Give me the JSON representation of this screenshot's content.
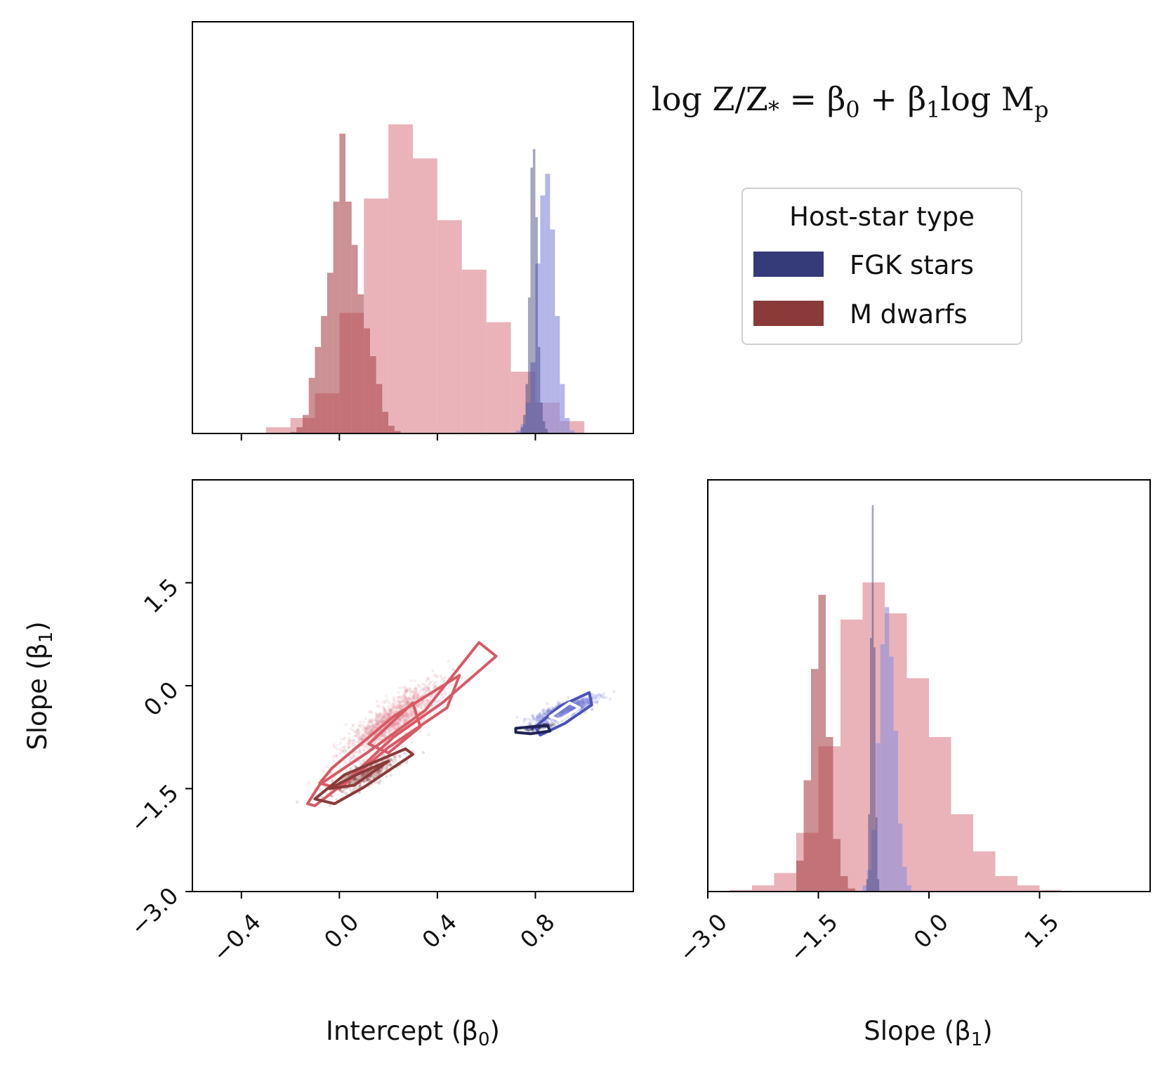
{
  "chart_data": {
    "type": "corner",
    "annotation": "log Z/Z* = β0 + β1 log Mp",
    "annotation_parts": {
      "lhs": "log Z/Z",
      "lhs_sub": "*",
      "eq": " = β",
      "b0_sub": "0",
      "plus": " + β",
      "b1_sub": "1",
      "log": "log M",
      "mp_sub": "p"
    },
    "legend": {
      "title": "Host-star type",
      "placement": "upper-right",
      "entries": [
        {
          "label": "FGK stars",
          "color": "#353a78"
        },
        {
          "label": "M dwarfs",
          "color": "#8b3a3a"
        }
      ]
    },
    "colors": {
      "fgk_dark": "#353a78",
      "fgk_light": "#8c8fdc",
      "m_dark": "#a8484d",
      "m_light": "#df8a95"
    },
    "panels": [
      {
        "name": "intercept-histogram",
        "type": "histogram",
        "xlim": [
          -0.6,
          1.2
        ],
        "xticks": [
          -0.4,
          0.0,
          0.4,
          0.8
        ],
        "show_tick_labels": false,
        "series": [
          {
            "name": "M dwarfs (light)",
            "color": "#df8a95",
            "opacity": 0.65,
            "bin_start": -0.3,
            "bin_width": 0.1,
            "counts": [
              0.02,
              0.05,
              0.13,
              0.39,
              0.76,
              1.0,
              0.89,
              0.69,
              0.53,
              0.36,
              0.2,
              0.1,
              0.04
            ]
          },
          {
            "name": "M dwarfs (dark)",
            "color": "#a8484d",
            "opacity": 0.6,
            "bin_start": -0.2,
            "bin_width": 0.025,
            "counts": [
              0.005,
              0.02,
              0.06,
              0.18,
              0.28,
              0.38,
              0.52,
              0.75,
              0.97,
              0.75,
              0.61,
              0.45,
              0.34,
              0.25,
              0.16,
              0.07,
              0.025,
              0.008
            ]
          },
          {
            "name": "FGK stars (light)",
            "color": "#8c8fdc",
            "opacity": 0.65,
            "bin_start": 0.72,
            "bin_width": 0.02,
            "counts": [
              0.01,
              0.03,
              0.1,
              0.23,
              0.55,
              0.77,
              0.84,
              0.66,
              0.38,
              0.16,
              0.05,
              0.01
            ]
          },
          {
            "name": "FGK stars (dark)",
            "color": "#353a78",
            "opacity": 0.45,
            "bin_start": 0.74,
            "bin_width": 0.01,
            "counts": [
              0.02,
              0.06,
              0.16,
              0.44,
              0.86,
              0.92,
              0.7,
              0.28,
              0.1,
              0.04,
              0.015
            ]
          }
        ]
      },
      {
        "name": "joint-scatter",
        "type": "scatter-contour",
        "xlim": [
          -0.6,
          1.2
        ],
        "ylim": [
          -3.0,
          3.0
        ],
        "xlabel": "Intercept (β0)",
        "xlabel_parts": {
          "text": "Intercept (β",
          "sub": "0",
          "close": ")"
        },
        "ylabel": "Slope (β1)",
        "ylabel_parts": {
          "text": "Slope (β",
          "sub": "1",
          "close": ")"
        },
        "xticks": [
          -0.4,
          0.0,
          0.4,
          0.8
        ],
        "xtick_labels": [
          "−0.4",
          "0.0",
          "0.4",
          "0.8"
        ],
        "yticks": [
          -3.0,
          -1.5,
          0.0,
          1.5
        ],
        "ytick_labels": [
          "−3.0",
          "−1.5",
          "0.0",
          "1.5"
        ],
        "clouds": [
          {
            "name": "M dwarfs (light)",
            "color": "#df8a95",
            "center": [
              0.22,
              -0.5
            ],
            "sd_major": 0.28,
            "sd_minor": 0.05,
            "slope": 3.2,
            "count": 1400
          },
          {
            "name": "M dwarfs (dark)",
            "color": "#8b3a3a",
            "center": [
              0.1,
              -1.3
            ],
            "sd_major": 0.14,
            "sd_minor": 0.04,
            "slope": 2.2,
            "count": 500
          },
          {
            "name": "FGK stars (light)",
            "color": "#7075d6",
            "center": [
              0.92,
              -0.35
            ],
            "sd_major": 0.1,
            "sd_minor": 0.03,
            "slope": 1.6,
            "count": 900
          },
          {
            "name": "FGK stars (dark)",
            "color": "#2a2d66",
            "center": [
              0.82,
              -0.6
            ],
            "sd_major": 0.04,
            "sd_minor": 0.015,
            "slope": 1.0,
            "count": 150
          }
        ],
        "contours": [
          {
            "name": "M dwarfs (light) outer",
            "color": "#d85a66",
            "points": [
              [
                -0.13,
                -1.72
              ],
              [
                -0.08,
                -1.44
              ],
              [
                0.12,
                -0.96
              ],
              [
                0.35,
                -0.36
              ],
              [
                0.57,
                0.63
              ],
              [
                0.64,
                0.43
              ],
              [
                0.42,
                -0.25
              ],
              [
                0.22,
                -0.75
              ],
              [
                0.02,
                -1.42
              ],
              [
                -0.1,
                -1.75
              ]
            ]
          },
          {
            "name": "M dwarfs (light) middle",
            "color": "#d85a66",
            "points": [
              [
                -0.03,
                -1.2
              ],
              [
                0.22,
                -0.45
              ],
              [
                0.49,
                0.15
              ],
              [
                0.44,
                -0.32
              ],
              [
                0.2,
                -0.9
              ],
              [
                0.0,
                -1.5
              ],
              [
                -0.08,
                -1.42
              ]
            ]
          },
          {
            "name": "M dwarfs (light) inner",
            "color": "#d85a66",
            "points": [
              [
                0.12,
                -0.85
              ],
              [
                0.3,
                -0.25
              ],
              [
                0.33,
                -0.6
              ],
              [
                0.2,
                -0.98
              ]
            ]
          },
          {
            "name": "M dwarfs (dark) outer",
            "color": "#8b3a3a",
            "points": [
              [
                -0.1,
                -1.65
              ],
              [
                0.02,
                -1.3
              ],
              [
                0.27,
                -0.92
              ],
              [
                0.3,
                -1.0
              ],
              [
                0.1,
                -1.48
              ],
              [
                -0.02,
                -1.72
              ]
            ]
          },
          {
            "name": "M dwarfs (dark) inner",
            "color": "#8b3a3a",
            "points": [
              [
                -0.04,
                -1.5
              ],
              [
                0.08,
                -1.28
              ],
              [
                0.2,
                -1.1
              ],
              [
                0.06,
                -1.45
              ]
            ]
          },
          {
            "name": "FGK stars outer",
            "color": "#4c52b8",
            "points": [
              [
                0.8,
                -0.6
              ],
              [
                0.9,
                -0.3
              ],
              [
                1.02,
                -0.1
              ],
              [
                1.03,
                -0.28
              ],
              [
                0.92,
                -0.55
              ],
              [
                0.82,
                -0.72
              ]
            ]
          },
          {
            "name": "FGK stars inner",
            "color": "#ffffff",
            "points": [
              [
                0.86,
                -0.45
              ],
              [
                0.94,
                -0.25
              ],
              [
                0.98,
                -0.32
              ],
              [
                0.9,
                -0.5
              ]
            ]
          },
          {
            "name": "FGK stars (dark)",
            "color": "#1f2255",
            "points": [
              [
                0.72,
                -0.62
              ],
              [
                0.78,
                -0.6
              ],
              [
                0.85,
                -0.58
              ],
              [
                0.86,
                -0.66
              ],
              [
                0.78,
                -0.7
              ],
              [
                0.72,
                -0.68
              ]
            ]
          }
        ]
      },
      {
        "name": "slope-histogram",
        "type": "histogram",
        "xlim": [
          -3.0,
          3.0
        ],
        "xlabel": "Slope (β1)",
        "xlabel_parts": {
          "text": "Slope (β",
          "sub": "1",
          "close": ")"
        },
        "xticks": [
          -3.0,
          -1.5,
          0.0,
          1.5
        ],
        "xtick_labels": [
          "−3.0",
          "−1.5",
          "0.0",
          "1.5"
        ],
        "series": [
          {
            "name": "M dwarfs (light)",
            "color": "#df8a95",
            "opacity": 0.65,
            "bin_start": -2.7,
            "bin_width": 0.3,
            "counts": [
              0.005,
              0.02,
              0.06,
              0.19,
              0.47,
              0.88,
              1.0,
              0.9,
              0.69,
              0.5,
              0.25,
              0.13,
              0.05,
              0.02,
              0.005
            ]
          },
          {
            "name": "M dwarfs (dark)",
            "color": "#a8484d",
            "opacity": 0.6,
            "bin_start": -1.8,
            "bin_width": 0.1,
            "counts": [
              0.1,
              0.36,
              0.72,
              0.96,
              0.5,
              0.17,
              0.05,
              0.01
            ]
          },
          {
            "name": "FGK stars (light)",
            "color": "#8c8fdc",
            "opacity": 0.6,
            "bin_start": -0.9,
            "bin_width": 0.06,
            "counts": [
              0.02,
              0.07,
              0.2,
              0.48,
              0.8,
              0.92,
              0.76,
              0.52,
              0.22,
              0.08,
              0.02
            ]
          },
          {
            "name": "FGK stars (dark)",
            "color": "#353a78",
            "opacity": 0.45,
            "bin_start": -0.85,
            "bin_width": 0.025,
            "counts": [
              0.04,
              0.25,
              0.82,
              1.25,
              0.79,
              0.24,
              0.04
            ]
          }
        ]
      }
    ]
  }
}
